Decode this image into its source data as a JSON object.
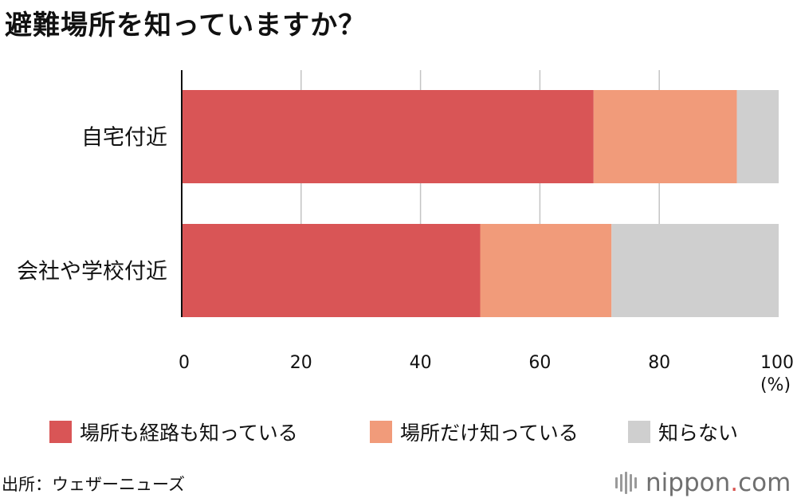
{
  "title": "避難場所を知っていますか？",
  "chart_data": {
    "type": "bar",
    "orientation": "horizontal",
    "stacked": true,
    "categories": [
      "自宅付近",
      "会社や学校付近"
    ],
    "series": [
      {
        "name": "場所も経路も知っている",
        "values": [
          69,
          50
        ],
        "color": "#d95556"
      },
      {
        "name": "場所だけ知っている",
        "values": [
          24,
          22
        ],
        "color": "#f19b7a"
      },
      {
        "name": "知らない",
        "values": [
          7,
          28
        ],
        "color": "#cfcfcf"
      }
    ],
    "xlim": [
      0,
      100
    ],
    "xticks": [
      "0",
      "20",
      "40",
      "60",
      "80",
      "100"
    ],
    "xunit": "(%)",
    "grid": true,
    "legend": "bottom"
  },
  "source": "出所：ウェザーニューズ",
  "logo": {
    "name": "nippon",
    "dot": ".",
    "tld": "com"
  }
}
